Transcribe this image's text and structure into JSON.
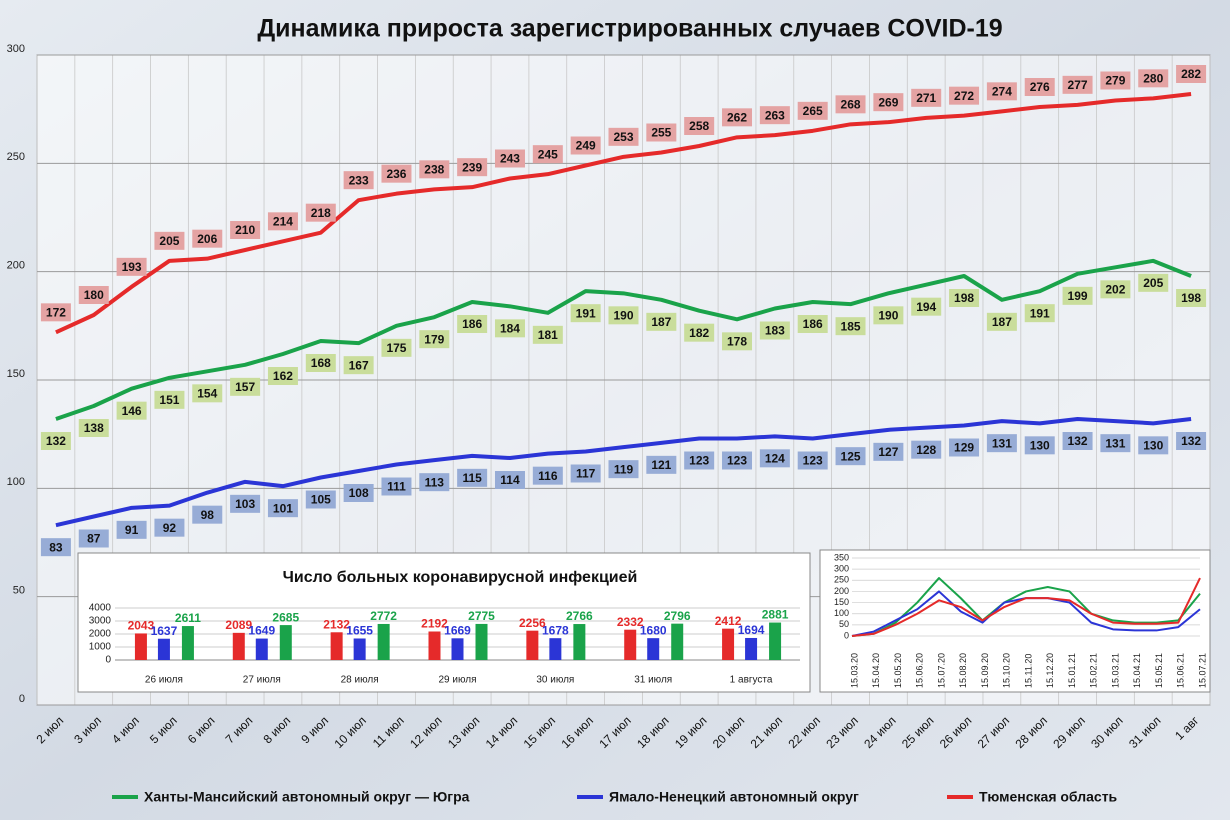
{
  "chart_data": [
    {
      "type": "line",
      "title": "Динамика прироста зарегистрированных случаев COVID-19",
      "categories": [
        "2 июл",
        "3 июл",
        "4 июл",
        "5 июл",
        "6 июл",
        "7 июл",
        "8 июл",
        "9 июл",
        "10 июл",
        "11 июл",
        "12 июл",
        "13 июл",
        "14 июл",
        "15 июл",
        "16 июл",
        "17 июл",
        "18 июл",
        "19 июл",
        "20 июл",
        "21 июл",
        "22 июл",
        "23 июл",
        "24 июл",
        "25 июл",
        "26 июл",
        "27 июл",
        "28 июл",
        "29 июл",
        "30 июл",
        "31 июл",
        "1 авг"
      ],
      "series": [
        {
          "name": "Ханты-Мансийский автономный округ — Югра",
          "color": "#1aa34a",
          "values": [
            132,
            138,
            146,
            151,
            154,
            157,
            162,
            168,
            167,
            175,
            179,
            186,
            184,
            181,
            191,
            190,
            187,
            182,
            178,
            183,
            186,
            185,
            190,
            194,
            198,
            187,
            191,
            199,
            202,
            205,
            198
          ]
        },
        {
          "name": "Ямало-Ненецкий автономный округ",
          "color": "#2b35d6",
          "values": [
            83,
            87,
            91,
            92,
            98,
            103,
            101,
            105,
            108,
            111,
            113,
            115,
            114,
            116,
            117,
            119,
            121,
            123,
            123,
            124,
            123,
            125,
            127,
            128,
            129,
            131,
            130,
            132,
            131,
            130,
            132
          ]
        },
        {
          "name": "Тюменская область",
          "color": "#e52a2a",
          "values": [
            172,
            180,
            193,
            205,
            206,
            210,
            214,
            218,
            233,
            236,
            238,
            239,
            243,
            245,
            249,
            253,
            255,
            258,
            262,
            263,
            265,
            268,
            269,
            271,
            272,
            274,
            276,
            277,
            279,
            280,
            282
          ]
        }
      ],
      "ylim": [
        0,
        300
      ],
      "yticks": [
        0,
        50,
        100,
        150,
        200,
        250,
        300
      ],
      "grid": true,
      "legend": "bottom"
    },
    {
      "type": "bar",
      "title": "Число больных  коронавирусной  инфекцией",
      "categories": [
        "26 июля",
        "27 июля",
        "28 июля",
        "29 июля",
        "30 июля",
        "31 июля",
        "1 августа"
      ],
      "series": [
        {
          "color": "#e52a2a",
          "values": [
            2043,
            2089,
            2132,
            2192,
            2256,
            2332,
            2412
          ]
        },
        {
          "color": "#2b35d6",
          "values": [
            1637,
            1649,
            1655,
            1669,
            1678,
            1680,
            1694
          ]
        },
        {
          "color": "#1aa34a",
          "values": [
            2611,
            2685,
            2772,
            2775,
            2766,
            2796,
            2881
          ]
        }
      ],
      "ylim": [
        0,
        4000
      ],
      "yticks": [
        0,
        1000,
        2000,
        3000,
        4000
      ],
      "grid": true
    },
    {
      "type": "line",
      "categories": [
        "15.03.20",
        "15.04.20",
        "15.05.20",
        "15.06.20",
        "15.07.20",
        "15.08.20",
        "15.09.20",
        "15.10.20",
        "15.11.20",
        "15.12.20",
        "15.01.21",
        "15.02.21",
        "15.03.21",
        "15.04.21",
        "15.05.21",
        "15.06.21",
        "15.07.21"
      ],
      "series": [
        {
          "color": "#1aa34a",
          "values": [
            0,
            10,
            60,
            150,
            260,
            170,
            70,
            150,
            200,
            220,
            200,
            100,
            70,
            60,
            60,
            70,
            190
          ]
        },
        {
          "color": "#2b35d6",
          "values": [
            0,
            20,
            70,
            120,
            200,
            110,
            60,
            150,
            170,
            170,
            150,
            60,
            30,
            25,
            25,
            40,
            120
          ]
        },
        {
          "color": "#e52a2a",
          "values": [
            0,
            10,
            50,
            100,
            160,
            130,
            70,
            130,
            170,
            170,
            160,
            100,
            60,
            55,
            55,
            60,
            260
          ]
        }
      ],
      "ylim": [
        0,
        350
      ],
      "yticks": [
        0,
        50,
        100,
        150,
        200,
        250,
        300,
        350
      ],
      "grid": true
    }
  ]
}
